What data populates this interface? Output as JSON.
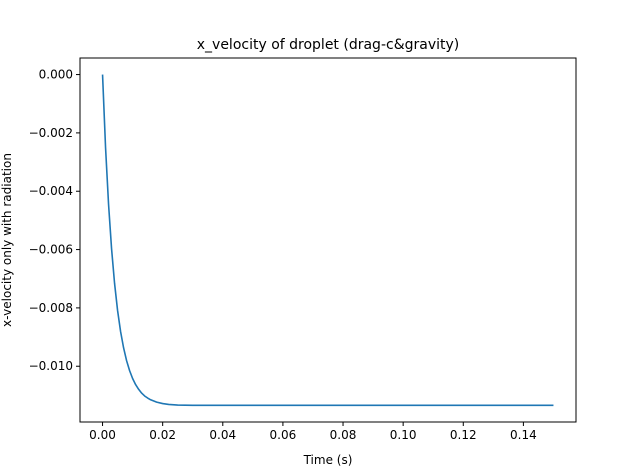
{
  "chart_data": {
    "type": "line",
    "title": "x_velocity of droplet (drag-c&gravity)",
    "xlabel": "Time (s)",
    "ylabel": "x-velocity only with radiation",
    "xlim": [
      -0.0075,
      0.1575
    ],
    "ylim": [
      -0.011912,
      0.000568
    ],
    "x_ticks": [
      0.0,
      0.02,
      0.04,
      0.06,
      0.08,
      0.1,
      0.12,
      0.14
    ],
    "x_tick_labels": [
      "0.00",
      "0.02",
      "0.04",
      "0.06",
      "0.08",
      "0.10",
      "0.12",
      "0.14"
    ],
    "y_ticks": [
      0.0,
      -0.002,
      -0.004,
      -0.006,
      -0.008,
      -0.01
    ],
    "y_tick_labels": [
      "0.000",
      "−0.002",
      "−0.004",
      "−0.006",
      "−0.008",
      "−0.010"
    ],
    "grid": false,
    "legend": "none",
    "series": [
      {
        "color": "#1f77b4",
        "x": [
          0,
          0.001,
          0.002,
          0.003,
          0.004,
          0.005,
          0.006,
          0.007,
          0.008,
          0.009,
          0.01,
          0.011,
          0.012,
          0.013,
          0.014,
          0.015,
          0.016,
          0.018,
          0.02,
          0.022,
          0.025,
          0.03,
          0.035,
          0.04,
          0.05,
          0.06,
          0.08,
          0.1,
          0.12,
          0.15
        ],
        "y": [
          0,
          -0.0025,
          -0.00445,
          -0.00597,
          -0.00716,
          -0.00809,
          -0.00881,
          -0.00937,
          -0.00981,
          -0.01015,
          -0.01042,
          -0.01063,
          -0.01079,
          -0.01092,
          -0.01102,
          -0.01109,
          -0.01115,
          -0.01123,
          -0.01128,
          -0.01131,
          -0.01133,
          -0.01134,
          -0.01134,
          -0.01134,
          -0.01134,
          -0.01134,
          -0.01134,
          -0.01134,
          -0.01134,
          -0.01134
        ]
      }
    ]
  }
}
